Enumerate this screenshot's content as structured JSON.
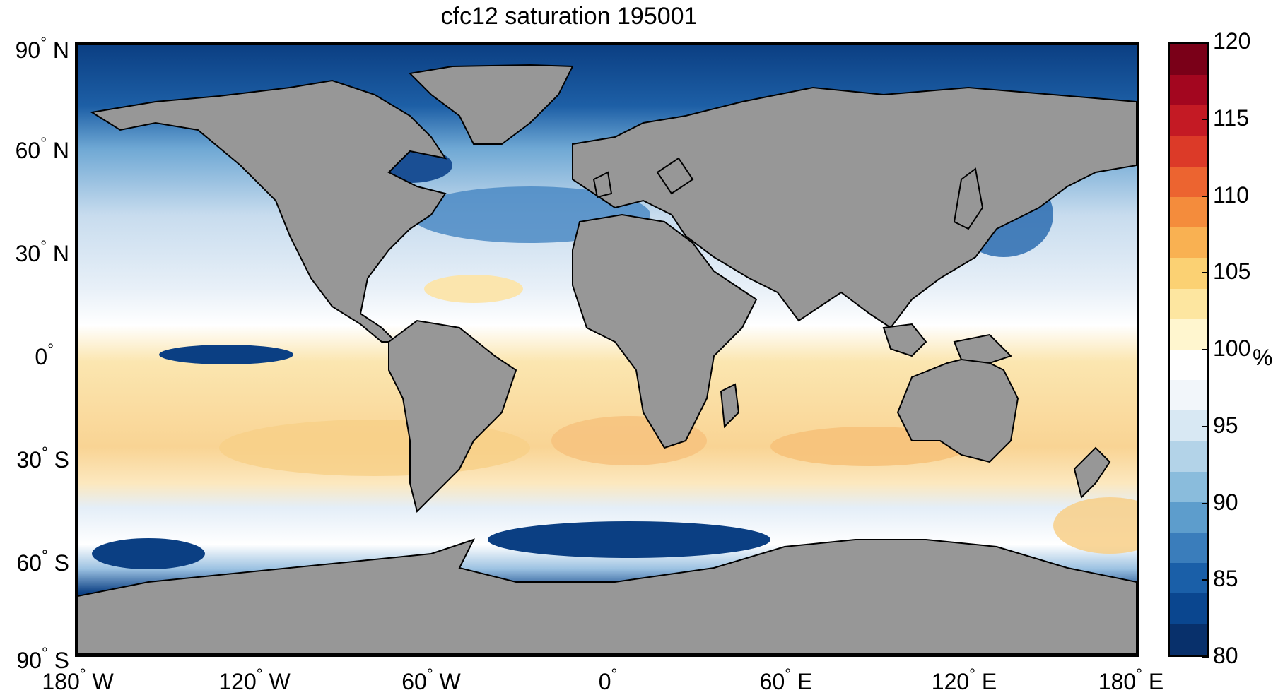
{
  "title": "cfc12 saturation 195001",
  "map": {
    "lat_labels": [
      {
        "value": 90,
        "num": "90",
        "hemi": "N"
      },
      {
        "value": 60,
        "num": "60",
        "hemi": "N"
      },
      {
        "value": 30,
        "num": "30",
        "hemi": "N"
      },
      {
        "value": 0,
        "num": "0",
        "hemi": ""
      },
      {
        "value": -30,
        "num": "30",
        "hemi": "S"
      },
      {
        "value": -60,
        "num": "60",
        "hemi": "S"
      },
      {
        "value": -90,
        "num": "90",
        "hemi": "S"
      }
    ],
    "lon_labels": [
      {
        "value": -180,
        "num": "180",
        "hemi": "W"
      },
      {
        "value": -120,
        "num": "120",
        "hemi": "W"
      },
      {
        "value": -60,
        "num": "60",
        "hemi": "W"
      },
      {
        "value": 0,
        "num": "0",
        "hemi": ""
      },
      {
        "value": 60,
        "num": "60",
        "hemi": "E"
      },
      {
        "value": 120,
        "num": "120",
        "hemi": "E"
      },
      {
        "value": 180,
        "num": "180",
        "hemi": "E"
      }
    ],
    "land_color": "#979797",
    "coast_color": "#000000"
  },
  "colorbar": {
    "min": 80,
    "max": 120,
    "ticks": [
      "80",
      "85",
      "90",
      "95",
      "100",
      "105",
      "110",
      "115",
      "120"
    ],
    "unit": "%",
    "colors": [
      "#08306b",
      "#0a468f",
      "#1a5fa8",
      "#3a7dbb",
      "#5d9dcc",
      "#8abcdc",
      "#b3d3e8",
      "#d8e8f3",
      "#f2f6fa",
      "#ffffff",
      "#fff6cf",
      "#fde6a0",
      "#fbd173",
      "#f9b152",
      "#f48c3c",
      "#ec6430",
      "#dc3a28",
      "#c41a24",
      "#a3061f",
      "#7a0018"
    ]
  }
}
